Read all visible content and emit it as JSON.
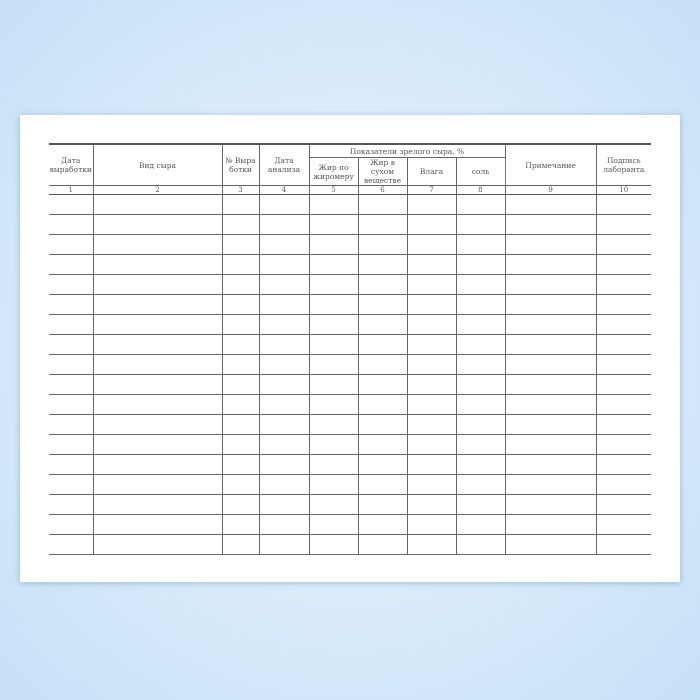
{
  "columns": {
    "date_produced": "Дата выработки",
    "cheese_type": "Вид сыра",
    "batch_no": "№ Выра ботки",
    "analysis_date": "Дата анализа",
    "ripe_group": "Показатели зрелого сыра, %",
    "fat_by_meter": "Жир по жиромеру",
    "fat_dry": "Жир в сухом веществе",
    "moisture": "Влага",
    "salt": "соль",
    "note": "Примечание",
    "signature": "Подпись лаборанта"
  },
  "numbers": [
    "1",
    "2",
    "3",
    "4",
    "5",
    "6",
    "7",
    "8",
    "9",
    "10"
  ]
}
